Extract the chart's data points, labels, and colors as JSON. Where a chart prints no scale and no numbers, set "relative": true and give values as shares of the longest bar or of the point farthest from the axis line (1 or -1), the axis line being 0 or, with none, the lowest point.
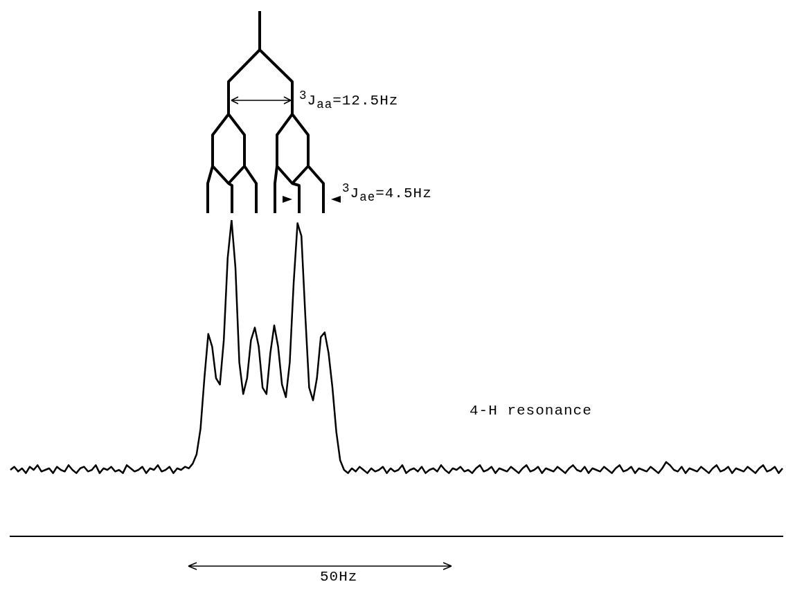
{
  "chart_data": {
    "type": "line",
    "relative": true,
    "marker": "none",
    "grid": false,
    "legend": false,
    "color": "#000000",
    "categories": [
      null,
      null,
      null,
      null,
      null,
      null,
      null,
      null,
      null,
      null,
      null,
      null,
      null,
      null,
      null,
      null,
      null,
      null,
      null,
      null,
      null,
      null,
      null,
      null,
      null,
      null,
      null,
      null,
      null,
      null,
      null,
      null,
      null,
      null,
      null,
      null,
      null,
      null,
      null,
      null,
      null,
      null,
      null,
      null,
      null,
      null,
      null,
      null,
      null,
      null,
      null,
      null,
      null,
      null,
      null,
      null,
      null,
      null,
      null,
      null,
      null,
      null,
      null,
      null,
      null,
      null,
      null,
      null,
      null,
      null,
      null,
      null,
      null,
      null,
      null,
      null,
      null,
      null,
      null,
      null,
      null,
      null,
      null,
      null,
      null,
      null,
      null,
      null,
      null,
      null,
      null,
      null,
      null,
      null,
      null,
      null,
      null,
      null,
      null,
      null,
      null,
      null,
      null,
      null,
      null,
      null,
      null,
      null,
      null,
      null,
      null,
      null,
      null,
      null,
      null,
      null,
      null,
      null,
      null,
      null,
      null,
      null,
      null,
      null,
      null,
      null,
      null,
      null,
      null,
      null,
      null,
      null,
      null,
      null,
      null,
      null,
      null,
      null,
      null,
      null,
      null,
      null,
      null,
      null,
      null,
      null,
      null,
      null,
      null,
      null,
      null,
      null,
      null,
      null,
      null,
      null,
      null,
      null,
      null,
      null,
      null,
      null,
      null,
      null,
      null,
      null,
      null,
      null,
      null,
      null,
      null,
      null,
      null,
      null,
      null,
      null,
      null,
      null,
      null,
      null,
      null,
      null,
      null,
      null,
      null,
      null,
      null,
      null,
      null,
      null,
      null,
      null,
      null,
      null,
      null,
      null,
      null,
      null,
      null,
      null
    ],
    "values": [
      0.21,
      0.22,
      0.205,
      0.215,
      0.2,
      0.22,
      0.21,
      0.225,
      0.205,
      0.21,
      0.215,
      0.2,
      0.22,
      0.21,
      0.205,
      0.225,
      0.21,
      0.2,
      0.215,
      0.22,
      0.205,
      0.21,
      0.225,
      0.2,
      0.215,
      0.21,
      0.22,
      0.205,
      0.21,
      0.2,
      0.225,
      0.215,
      0.205,
      0.21,
      0.22,
      0.2,
      0.215,
      0.21,
      0.225,
      0.205,
      0.21,
      0.22,
      0.2,
      0.215,
      0.21,
      0.22,
      0.215,
      0.23,
      0.26,
      0.34,
      0.5,
      0.64,
      0.6,
      0.5,
      0.48,
      0.62,
      0.88,
      1.0,
      0.85,
      0.55,
      0.45,
      0.5,
      0.62,
      0.66,
      0.6,
      0.47,
      0.45,
      0.58,
      0.667,
      0.6,
      0.48,
      0.44,
      0.55,
      0.8,
      0.99,
      0.95,
      0.7,
      0.47,
      0.43,
      0.5,
      0.63,
      0.645,
      0.58,
      0.47,
      0.33,
      0.24,
      0.21,
      0.2,
      0.215,
      0.205,
      0.22,
      0.21,
      0.2,
      0.215,
      0.205,
      0.21,
      0.22,
      0.2,
      0.215,
      0.205,
      0.21,
      0.225,
      0.2,
      0.21,
      0.215,
      0.205,
      0.22,
      0.2,
      0.21,
      0.215,
      0.205,
      0.225,
      0.21,
      0.2,
      0.215,
      0.21,
      0.22,
      0.205,
      0.21,
      0.2,
      0.215,
      0.225,
      0.205,
      0.21,
      0.22,
      0.2,
      0.215,
      0.21,
      0.205,
      0.22,
      0.21,
      0.2,
      0.215,
      0.225,
      0.205,
      0.21,
      0.22,
      0.2,
      0.215,
      0.21,
      0.205,
      0.22,
      0.21,
      0.2,
      0.215,
      0.225,
      0.21,
      0.205,
      0.22,
      0.2,
      0.215,
      0.21,
      0.205,
      0.22,
      0.21,
      0.2,
      0.215,
      0.225,
      0.205,
      0.21,
      0.22,
      0.2,
      0.215,
      0.21,
      0.205,
      0.22,
      0.21,
      0.2,
      0.215,
      0.235,
      0.225,
      0.21,
      0.205,
      0.22,
      0.2,
      0.215,
      0.21,
      0.205,
      0.22,
      0.21,
      0.2,
      0.215,
      0.225,
      0.205,
      0.21,
      0.22,
      0.2,
      0.215,
      0.21,
      0.205,
      0.22,
      0.21,
      0.2,
      0.215,
      0.225,
      0.205,
      0.21,
      0.22,
      0.2,
      0.215
    ],
    "annotations": [
      "$^{3}$J$_{aa}$=12.5Hz",
      "$^{3}$J$_{ae}$=4.5Hz",
      "4-H resonance",
      "50Hz"
    ]
  }
}
